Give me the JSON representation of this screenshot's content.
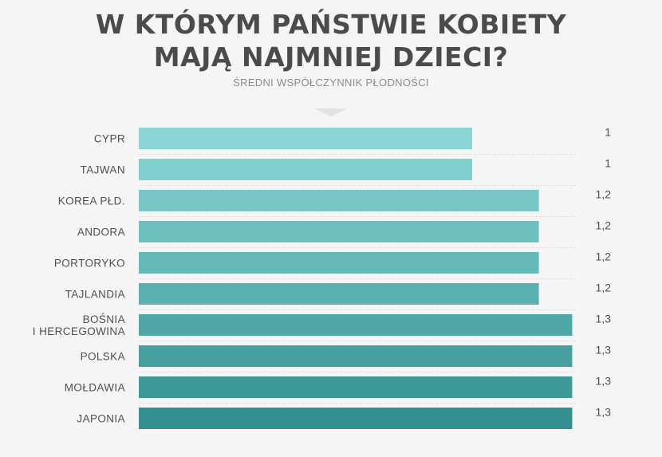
{
  "header": {
    "title_line1": "W KTÓRYM PAŃSTWIE KOBIETY",
    "title_line2": "MAJĄ NAJMNIEJ DZIECI?",
    "subtitle": "ŚREDNI WSPÓŁCZYNNIK PŁODNOŚCI"
  },
  "chart_data": {
    "type": "bar",
    "orientation": "horizontal",
    "title": "W KTÓRYM PAŃSTWIE KOBIETY MAJĄ NAJMNIEJ DZIECI?",
    "subtitle": "ŚREDNI WSPÓŁCZYNNIK PŁODNOŚCI",
    "categories": [
      [
        "CYPR"
      ],
      [
        "TAJWAN"
      ],
      [
        "KOREA PŁD."
      ],
      [
        "ANDORA"
      ],
      [
        "PORTORYKO"
      ],
      [
        "TAJLANDIA"
      ],
      [
        "BOŚNIA",
        "I HERCEGOWINA"
      ],
      [
        "POLSKA"
      ],
      [
        "MOŁDAWIA"
      ],
      [
        "JAPONIA"
      ]
    ],
    "values": [
      1,
      1,
      1.2,
      1.2,
      1.2,
      1.2,
      1.3,
      1.3,
      1.3,
      1.3
    ],
    "value_labels": [
      "1",
      "1",
      "1,2",
      "1,2",
      "1,2",
      "1,2",
      "1,3",
      "1,3",
      "1,3",
      "1,3"
    ],
    "colors": [
      "#8ad6d6",
      "#81d0d0",
      "#77c7c7",
      "#6ec0c0",
      "#64b8b8",
      "#5bb1b1",
      "#4fa7a8",
      "#46a0a0",
      "#3d9898",
      "#338f90"
    ],
    "separator_color": "#cfcfcf",
    "grid": false,
    "legend": "none"
  }
}
